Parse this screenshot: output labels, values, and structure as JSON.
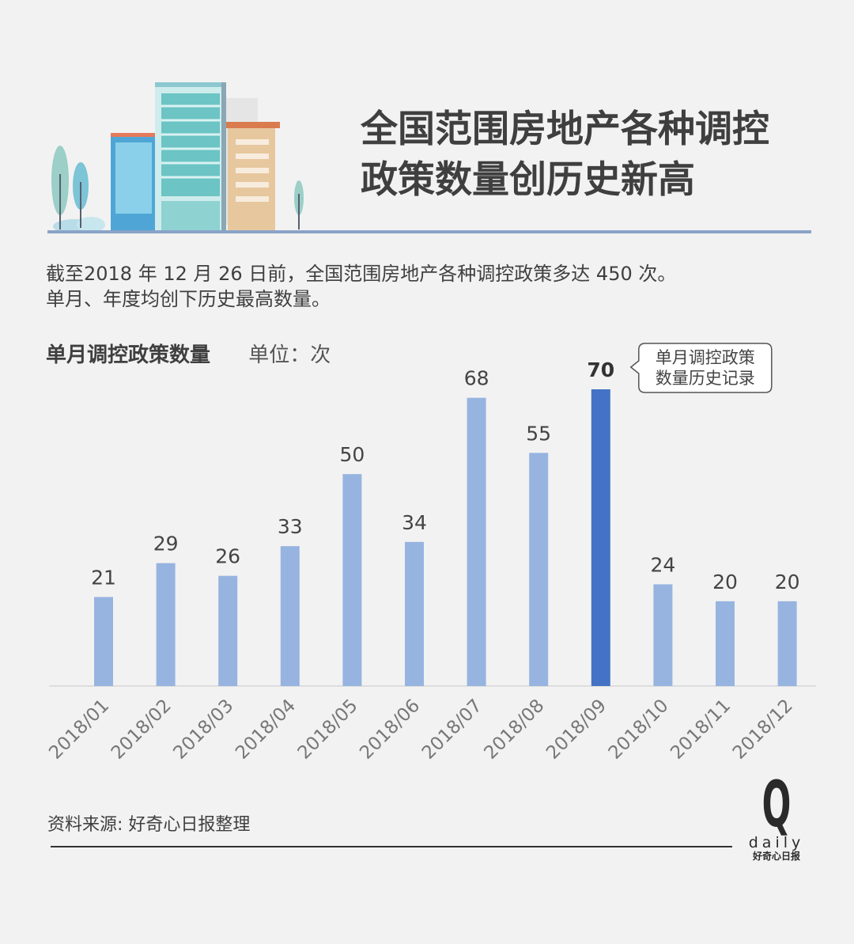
{
  "title_lines": [
    "全国范围房地产各种调控",
    "政策数量创历史新高"
  ],
  "intro_lines": [
    "截至2018 年 12 月 26 日前，全国范围房地产各种调控政策多达 450 次。",
    "单月、年度均创下历史最高数量。"
  ],
  "chart_title": "单月调控政策数量",
  "unit_label": "单位：次",
  "callout_lines": [
    "单月调控政策",
    "数量历史记录"
  ],
  "source": "资料来源: 好奇心日报整理",
  "logo": {
    "mark": "Q",
    "word": "daily",
    "cn": "好奇心日报"
  },
  "colors": {
    "bar": "#97b4e0",
    "highlight": "#4472c4",
    "rule": "#8aa3c8"
  },
  "chart_data": {
    "type": "bar",
    "categories": [
      "2018/01",
      "2018/02",
      "2018/03",
      "2018/04",
      "2018/05",
      "2018/06",
      "2018/07",
      "2018/08",
      "2018/09",
      "2018/10",
      "2018/11",
      "2018/12"
    ],
    "values": [
      21,
      29,
      26,
      33,
      50,
      34,
      68,
      55,
      70,
      24,
      20,
      20
    ],
    "highlight_category": "2018/09",
    "title": "单月调控政策数量",
    "ylabel": "",
    "xlabel": "",
    "ylim": [
      0,
      70
    ],
    "grid": false,
    "legend": "none"
  }
}
